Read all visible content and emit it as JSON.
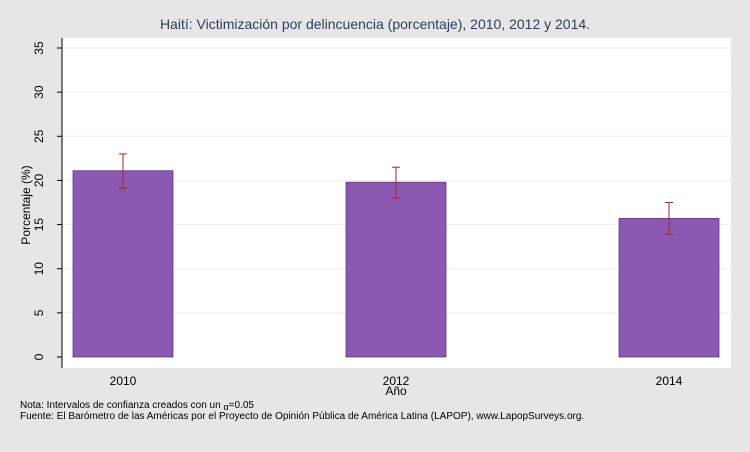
{
  "notes": {
    "line1_prefix": "Nota: Intervalos de confianza creados con un",
    "line1_symbol": "α",
    "line1_value": "=0.05",
    "line2": "Fuente: El Barómetro de las Américas por el Proyecto de Opinión Pública de América Latina (LAPOP), www.LapopSurveys.org."
  },
  "chart_data": {
    "type": "bar",
    "title": "Haití: Victimización por delincuencia (porcentaje), 2010, 2012 y 2014.",
    "xlabel": "Año",
    "ylabel": "Porcentaje (%)",
    "categories": [
      "2010",
      "2012",
      "2014"
    ],
    "values": [
      21.1,
      19.8,
      15.7
    ],
    "ci_low": [
      19.1,
      18.0,
      13.9
    ],
    "ci_high": [
      23.0,
      21.5,
      17.5
    ],
    "ylim": [
      0,
      35
    ],
    "yticks": [
      0,
      5,
      10,
      15,
      20,
      25,
      30,
      35
    ],
    "grid": true,
    "bar_color": "#8b58b2",
    "errorbar_color": "#9c2a2a",
    "background_color": "#e6e6e6",
    "plot_background_color": "#ffffff",
    "title_color": "#2e3f5c"
  }
}
